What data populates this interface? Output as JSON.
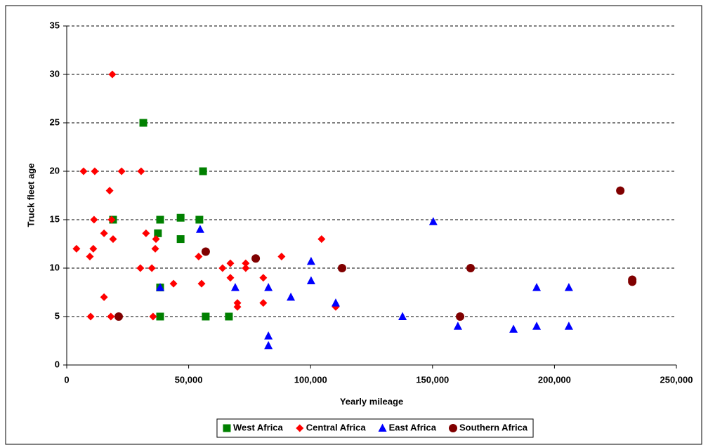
{
  "chart_data": {
    "type": "scatter",
    "x_label": "Yearly mileage",
    "y_label": "Truck fleet age",
    "xlim": [
      0,
      250000
    ],
    "ylim": [
      0,
      35
    ],
    "xticks": [
      0,
      {
        "value": 50000,
        "label": "50,000"
      },
      {
        "value": 100000,
        "label": "100,000"
      },
      {
        "value": 150000,
        "label": "150,000"
      },
      {
        "value": 200000,
        "label": "200,000"
      },
      {
        "value": 250000,
        "label": "250,000"
      }
    ],
    "yticks": [
      0,
      5,
      10,
      15,
      20,
      25,
      30,
      35
    ],
    "grid": true,
    "legend": "bottom",
    "series": [
      {
        "name": "West Africa",
        "color": "#008000",
        "marker": "square",
        "x": [
          19000,
          31400,
          38300,
          37400,
          38300,
          38300,
          46700,
          46700,
          54400,
          55900,
          57000,
          66500
        ],
        "values": [
          15,
          25,
          15,
          13.6,
          8,
          5,
          13,
          15.2,
          15,
          20,
          5,
          5
        ]
      },
      {
        "name": "Central Africa",
        "color": "#ff0000",
        "marker": "diamond",
        "x": [
          4000,
          6900,
          9500,
          9800,
          10900,
          11200,
          11500,
          15300,
          15300,
          17600,
          18100,
          18400,
          18700,
          19000,
          22500,
          30200,
          30500,
          32500,
          34900,
          35400,
          36300,
          36600,
          43800,
          54100,
          55300,
          63900,
          67100,
          67100,
          70000,
          70000,
          73400,
          73400,
          80600,
          80600,
          88100,
          104500,
          110300
        ],
        "values": [
          12,
          20,
          11.2,
          5,
          12,
          15,
          20,
          13.6,
          7,
          18,
          5,
          15,
          30,
          13,
          20,
          10,
          20,
          13.6,
          10,
          5,
          12,
          13,
          8.4,
          11.2,
          8.4,
          10,
          10.5,
          9,
          6.4,
          6,
          10,
          10.5,
          9,
          6.4,
          11.2,
          13,
          6
        ]
      },
      {
        "name": "East Africa",
        "color": "#0000ff",
        "marker": "triangle",
        "x": [
          38300,
          54700,
          69100,
          82700,
          82700,
          82700,
          91900,
          100200,
          100200,
          110300,
          137700,
          150300,
          160400,
          183200,
          192700,
          192700,
          205900,
          205900
        ],
        "values": [
          8,
          14,
          8,
          8,
          3,
          2,
          7,
          10.7,
          8.7,
          6.4,
          5,
          14.8,
          4,
          3.7,
          8,
          4,
          8,
          4
        ]
      },
      {
        "name": "Southern Africa",
        "color": "#800000",
        "marker": "circle",
        "x": [
          21300,
          57000,
          77500,
          112900,
          161300,
          165600,
          227000,
          231900,
          231900
        ],
        "values": [
          5,
          11.7,
          11,
          10,
          5,
          10,
          18,
          8.8,
          8.6
        ]
      }
    ]
  }
}
